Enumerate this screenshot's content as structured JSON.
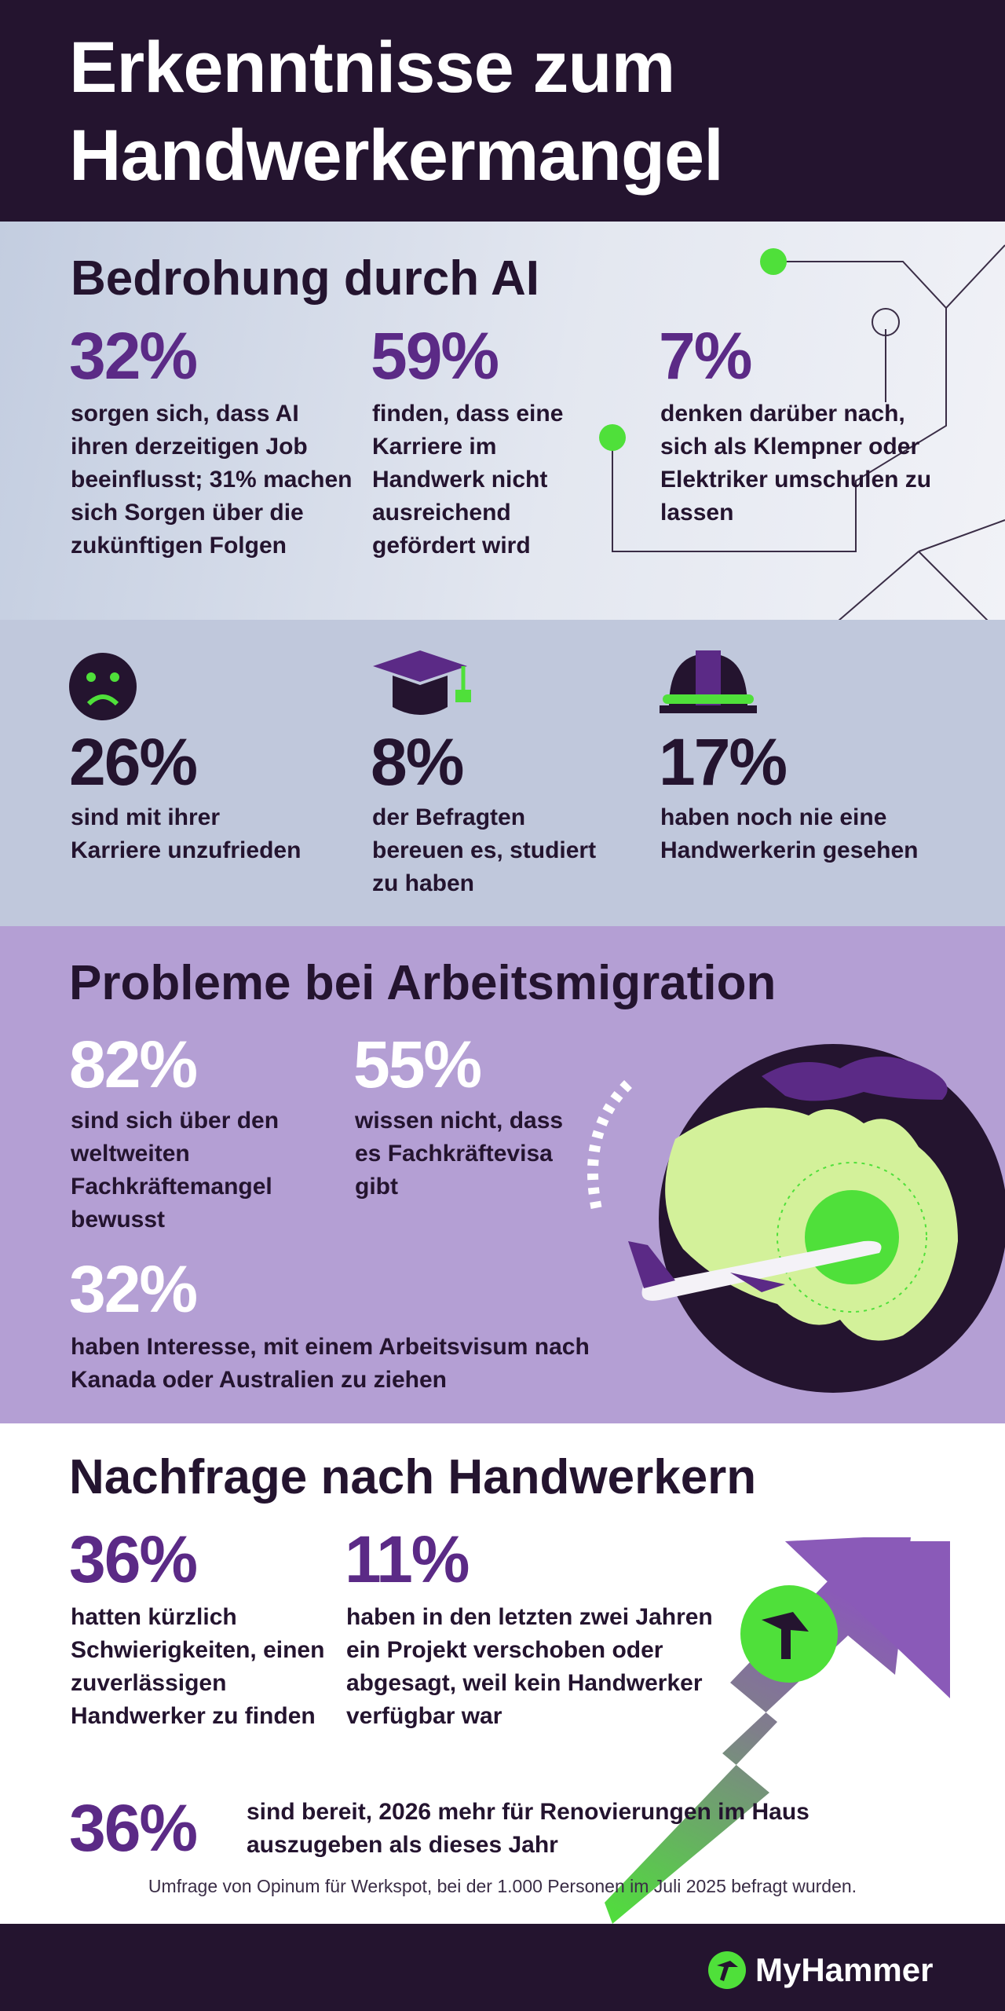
{
  "header": {
    "title": "Erkenntnisse zum Handwerkermangel"
  },
  "sections": [
    {
      "title": "Bedrohung durch AI",
      "stats": [
        {
          "value": "32%",
          "text": "sorgen sich, dass AI ihren derzeitigen Job beeinflusst; 31% machen sich Sorgen über die zukünftigen Folgen"
        },
        {
          "value": "59%",
          "text": "finden, dass eine Karriere im Handwerk nicht ausreichend gefördert wird"
        },
        {
          "value": "7%",
          "text": "denken darüber nach, sich als Klempner oder Elektriker umschulen zu lassen"
        }
      ]
    },
    {
      "stats": [
        {
          "value": "26%",
          "text": "sind mit ihrer Karriere unzufrieden"
        },
        {
          "value": "8%",
          "text": "der Befragten bereuen es, studiert zu haben"
        },
        {
          "value": "17%",
          "text": "haben noch nie eine Handwerkerin gesehen"
        }
      ]
    },
    {
      "title": "Probleme bei Arbeitsmigration",
      "stats": [
        {
          "value": "82%",
          "text": "sind sich über den weltweiten Fachkräftemangel bewusst"
        },
        {
          "value": "55%",
          "text": "wissen nicht, dass es Fachkräftevisa gibt"
        },
        {
          "value": "32%",
          "text": "haben Interesse, mit einem Arbeitsvisum nach Kanada oder Australien zu ziehen"
        }
      ]
    },
    {
      "title": "Nachfrage nach Handwerkern",
      "stats": [
        {
          "value": "36%",
          "text": "hatten kürzlich Schwierigkeiten, einen zuverlässigen Handwerker zu finden"
        },
        {
          "value": "11%",
          "text": "haben in den letzten zwei Jahren ein Projekt verschoben oder abgesagt, weil kein Handwerker verfügbar war"
        },
        {
          "value": "36%",
          "text": "sind bereit, 2026 mehr für Renovierungen im Haus auszugeben als dieses Jahr"
        }
      ]
    }
  ],
  "footnote": "Umfrage von Opinum für Werkspot, bei der 1.000 Personen im Juli 2025 befragt wurden.",
  "footer": {
    "logo": "MyHammer"
  }
}
